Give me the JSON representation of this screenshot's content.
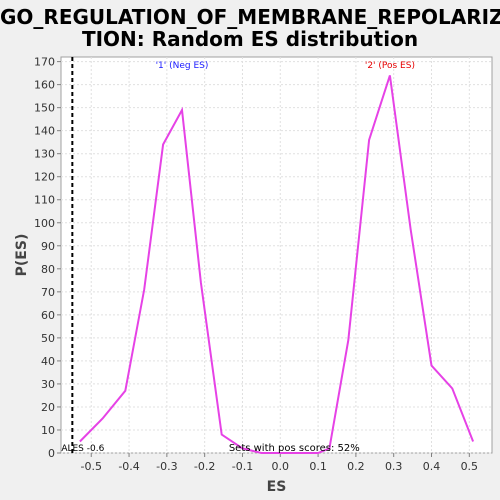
{
  "chart_data": {
    "type": "line",
    "title_line1": "GO_REGULATION_OF_MEMBRANE_REPOLARIZA",
    "title_line2": "TION: Random ES distribution",
    "xlabel": "ES",
    "ylabel": "P(ES)",
    "xlim": [
      -0.58,
      0.56
    ],
    "ylim": [
      0,
      172
    ],
    "x_ticks": [
      -0.5,
      -0.4,
      -0.3,
      -0.2,
      -0.1,
      0.0,
      0.1,
      0.2,
      0.3,
      0.4,
      0.5
    ],
    "y_ticks": [
      0,
      10,
      20,
      30,
      40,
      50,
      60,
      70,
      80,
      90,
      100,
      110,
      120,
      130,
      140,
      150,
      160,
      170
    ],
    "grid": true,
    "series": [
      {
        "color": "#e642e6",
        "x": [
          -0.53,
          -0.47,
          -0.41,
          -0.36,
          -0.31,
          -0.26,
          -0.21,
          -0.155,
          -0.1,
          -0.05,
          0.0,
          0.05,
          0.1,
          0.13,
          0.18,
          0.235,
          0.29,
          0.345,
          0.4,
          0.455,
          0.51
        ],
        "y": [
          5,
          15,
          27,
          71,
          134,
          149,
          74,
          8,
          2,
          0,
          0,
          0,
          0,
          2,
          49,
          136,
          164,
          97,
          38,
          28,
          5
        ]
      }
    ],
    "annotations": {
      "neg_label": "'1' (Neg ES)",
      "neg_color": "#1a1aff",
      "pos_label": "'2' (Pos ES)",
      "pos_color": "#e60000",
      "actual_es_label": "ALES -0.6",
      "actual_es_x": -0.55,
      "sets_text": "Sets with pos scores: 52%"
    }
  }
}
